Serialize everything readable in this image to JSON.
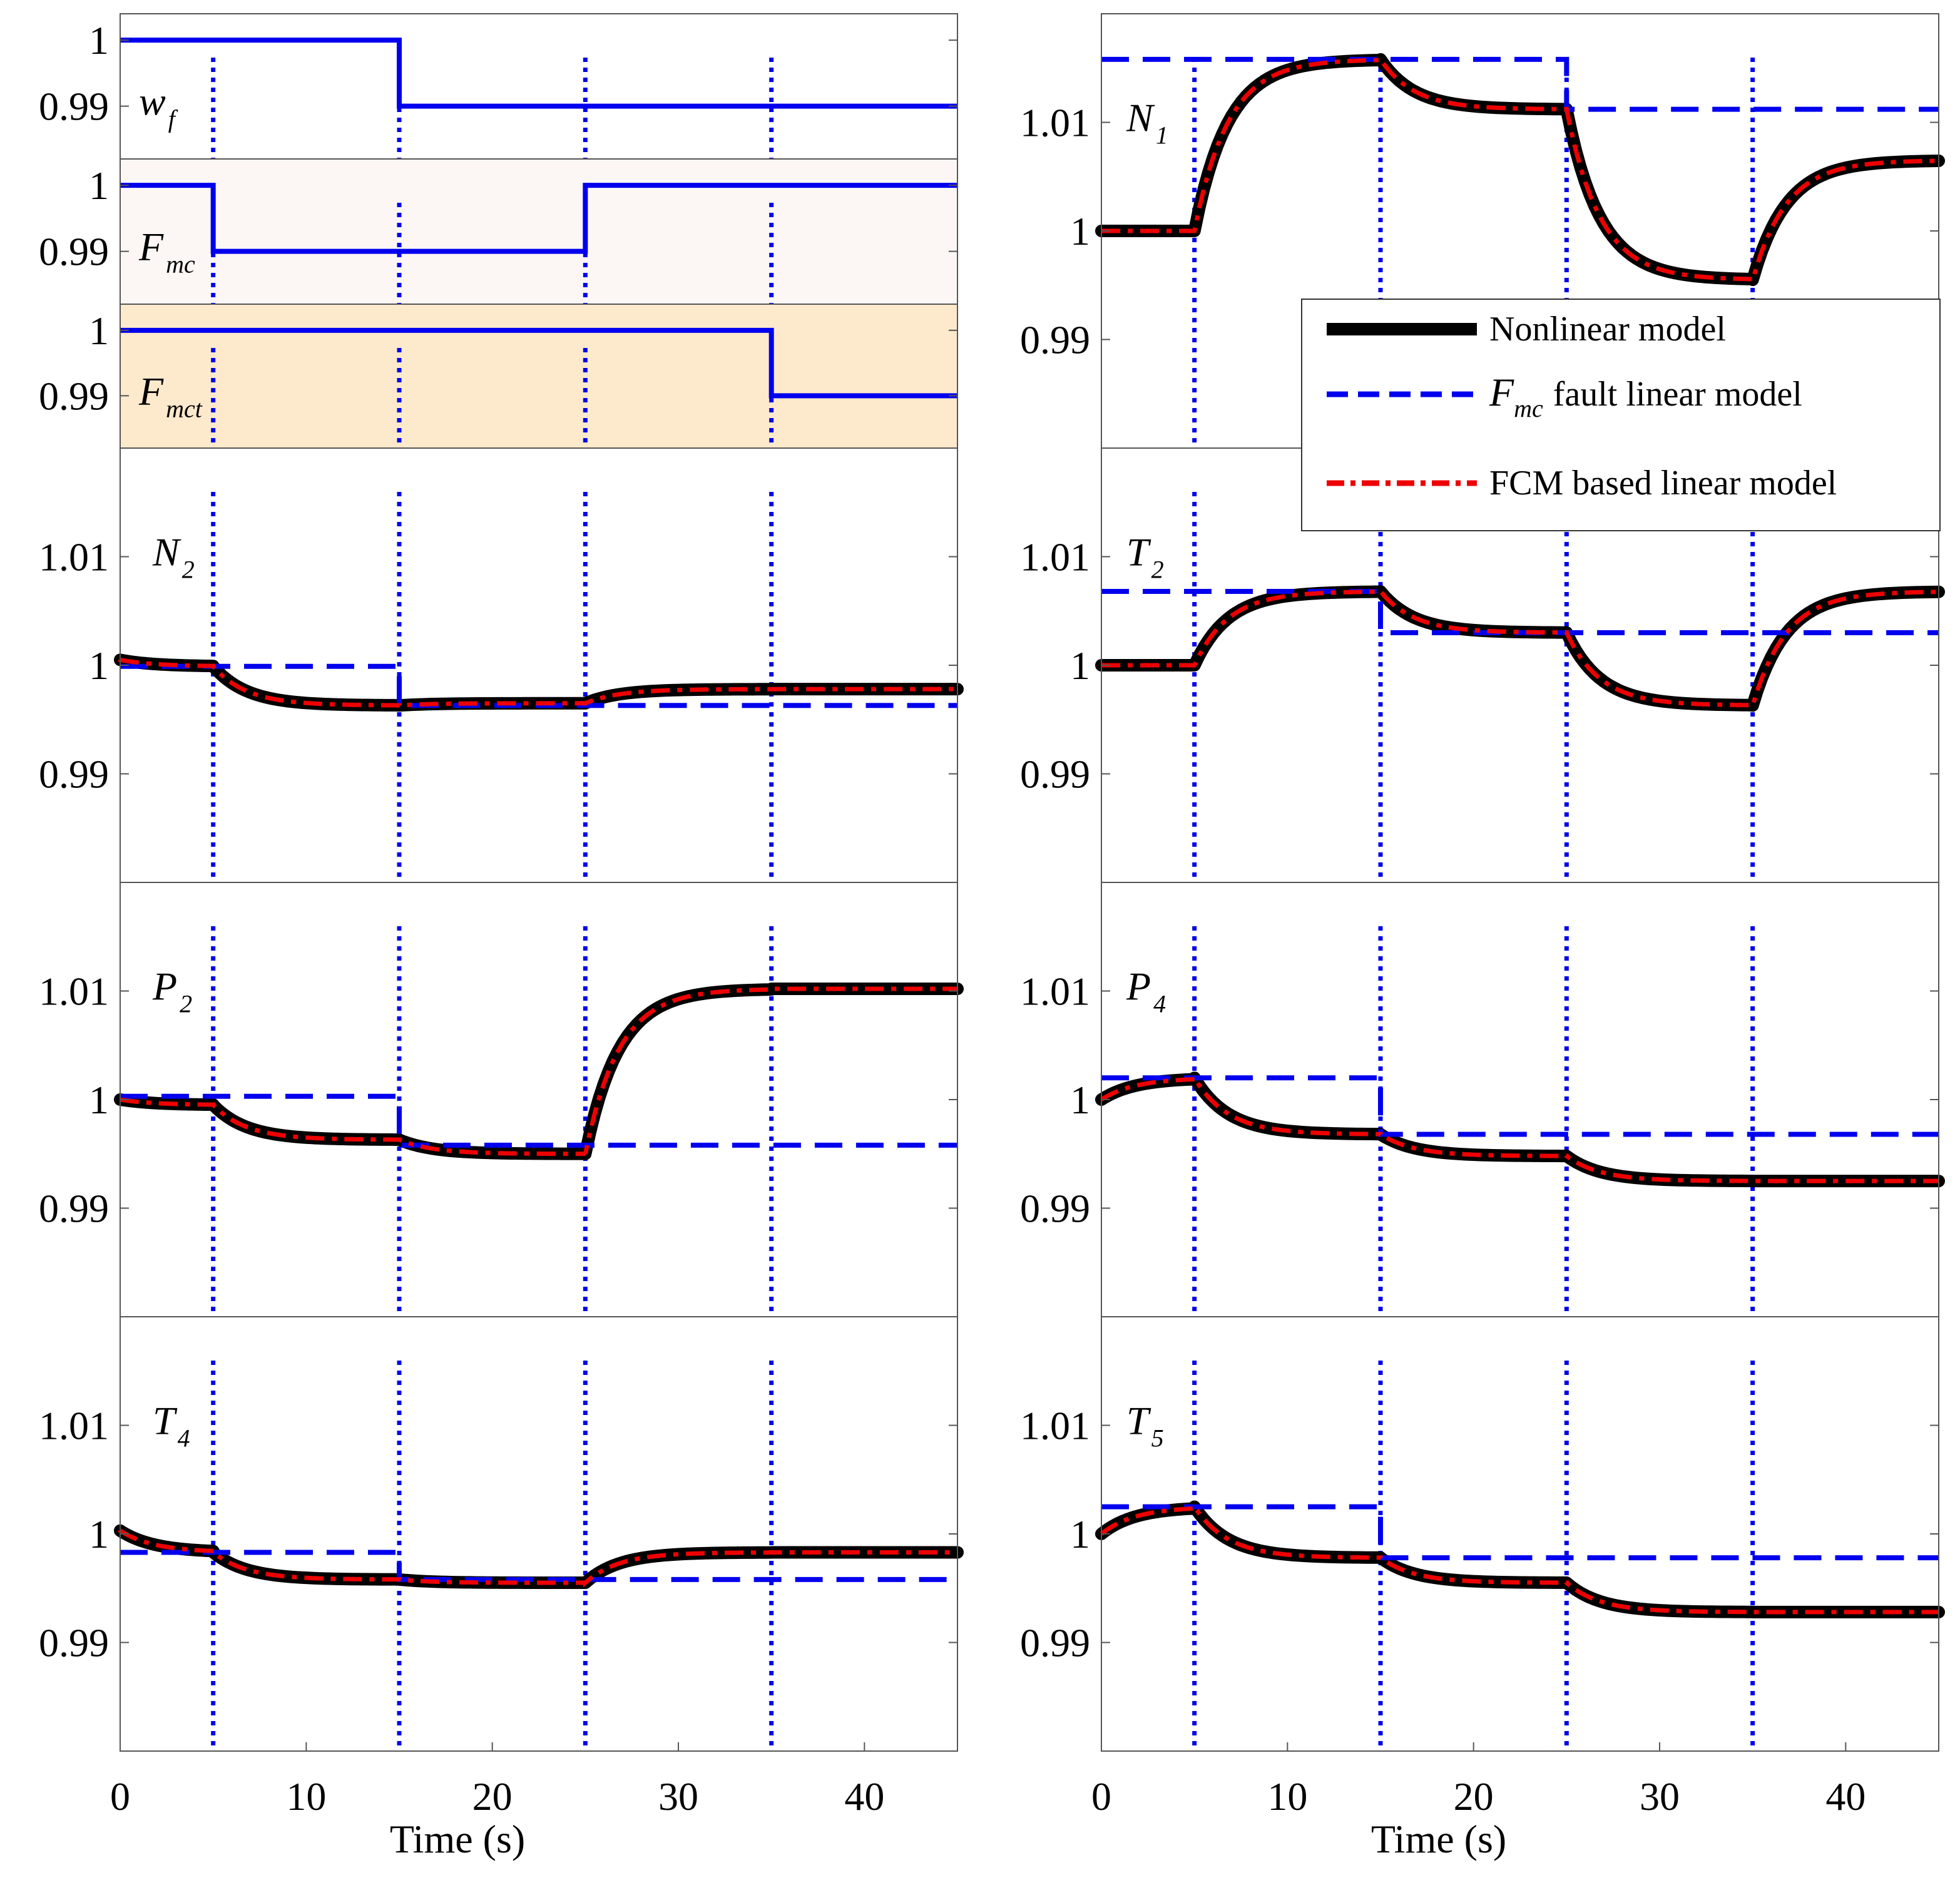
{
  "chart_data": {
    "type": "line",
    "x_label": "Time (s)",
    "x_ticks": [
      "0",
      "10",
      "20",
      "30",
      "40"
    ],
    "y_tick_labels": [
      "1.01",
      "1",
      "0.99"
    ],
    "small_y_tick_labels": [
      "1",
      "0.99"
    ],
    "legend": {
      "placement": "inside top-right of N1 panel",
      "entries": [
        {
          "key": "nonlinear",
          "label": "Nonlinear model",
          "color": "#000000",
          "style": "thick-solid"
        },
        {
          "key": "fault",
          "symbol": "F",
          "subscript": "mc",
          "label": "fault linear model",
          "color": "#0000ee",
          "style": "dashed"
        },
        {
          "key": "fcm",
          "label": "FCM based linear model",
          "color": "#ee0000",
          "style": "dash-dot"
        }
      ]
    },
    "event_times": [
      5,
      15,
      25,
      35
    ],
    "xlim": [
      0,
      45
    ],
    "input_panels": [
      {
        "id": "wf",
        "symbol": "w",
        "subscript": "f",
        "ylim": [
          0.982,
          1.004
        ],
        "background": "#ffffff",
        "steps": [
          [
            0,
            1.0
          ],
          [
            15,
            0.99
          ]
        ]
      },
      {
        "id": "fmc",
        "symbol": "F",
        "subscript": "mc",
        "ylim": [
          0.982,
          1.004
        ],
        "background": "#fcf7f5",
        "steps": [
          [
            0,
            1.0
          ],
          [
            5,
            0.99
          ],
          [
            25,
            1.0
          ]
        ]
      },
      {
        "id": "fmct",
        "symbol": "F",
        "subscript": "mct",
        "ylim": [
          0.982,
          1.004
        ],
        "background": "#fde9cc",
        "steps": [
          [
            0,
            1.0
          ],
          [
            35,
            0.99
          ]
        ]
      }
    ],
    "output_panels": [
      {
        "id": "n1",
        "symbol": "N",
        "subscript": "1",
        "ylim": [
          0.98,
          1.02
        ],
        "nonlinear": [
          [
            0,
            1.0
          ],
          [
            5,
            1.0
          ],
          [
            15,
            1.0158
          ],
          [
            25,
            1.0112
          ],
          [
            35,
            0.9955
          ],
          [
            45,
            1.0065
          ]
        ],
        "fcm": [
          [
            0,
            1.0
          ],
          [
            5,
            1.0
          ],
          [
            15,
            1.0158
          ],
          [
            25,
            1.0112
          ],
          [
            35,
            0.9955
          ],
          [
            45,
            1.0065
          ]
        ],
        "fault_linear": [
          [
            0,
            1.0158
          ],
          [
            25,
            1.0112
          ]
        ]
      },
      {
        "id": "n2",
        "symbol": "N",
        "subscript": "2",
        "ylim": [
          0.98,
          1.02
        ],
        "nonlinear": [
          [
            0,
            1.0005
          ],
          [
            5,
            0.9999
          ],
          [
            15,
            0.9963
          ],
          [
            25,
            0.9965
          ],
          [
            35,
            0.9978
          ],
          [
            45,
            0.9978
          ]
        ],
        "fcm": [
          [
            0,
            1.0005
          ],
          [
            5,
            0.9999
          ],
          [
            15,
            0.9963
          ],
          [
            25,
            0.9965
          ],
          [
            35,
            0.9978
          ],
          [
            45,
            0.9978
          ]
        ],
        "fault_linear": [
          [
            0,
            0.9999
          ],
          [
            15,
            0.9963
          ]
        ]
      },
      {
        "id": "t2",
        "symbol": "T",
        "subscript": "2",
        "ylim": [
          0.98,
          1.02
        ],
        "nonlinear": [
          [
            0,
            1.0
          ],
          [
            5,
            1.0
          ],
          [
            15,
            1.0068
          ],
          [
            25,
            1.003
          ],
          [
            35,
            0.9963
          ],
          [
            45,
            1.0068
          ]
        ],
        "fcm": [
          [
            0,
            1.0
          ],
          [
            5,
            1.0
          ],
          [
            15,
            1.0068
          ],
          [
            25,
            1.003
          ],
          [
            35,
            0.9963
          ],
          [
            45,
            1.0068
          ]
        ],
        "fault_linear": [
          [
            0,
            1.0068
          ],
          [
            15,
            1.003
          ]
        ]
      },
      {
        "id": "p2",
        "symbol": "P",
        "subscript": "2",
        "ylim": [
          0.98,
          1.02
        ],
        "nonlinear": [
          [
            0,
            1.0
          ],
          [
            5,
            0.9995
          ],
          [
            15,
            0.9963
          ],
          [
            25,
            0.995
          ],
          [
            35,
            1.0102
          ],
          [
            45,
            1.0102
          ]
        ],
        "fcm": [
          [
            0,
            1.0
          ],
          [
            5,
            0.9995
          ],
          [
            15,
            0.9963
          ],
          [
            25,
            0.995
          ],
          [
            35,
            1.0102
          ],
          [
            45,
            1.0102
          ]
        ],
        "fault_linear": [
          [
            0,
            1.0003
          ],
          [
            15,
            0.9958
          ]
        ]
      },
      {
        "id": "p4",
        "symbol": "P",
        "subscript": "4",
        "ylim": [
          0.98,
          1.02
        ],
        "nonlinear": [
          [
            0,
            1.0
          ],
          [
            5,
            1.002
          ],
          [
            15,
            0.9968
          ],
          [
            25,
            0.9948
          ],
          [
            35,
            0.9925
          ],
          [
            45,
            0.9925
          ]
        ],
        "fcm": [
          [
            0,
            1.0
          ],
          [
            5,
            1.002
          ],
          [
            15,
            0.9968
          ],
          [
            25,
            0.9948
          ],
          [
            35,
            0.9925
          ],
          [
            45,
            0.9925
          ]
        ],
        "fault_linear": [
          [
            0,
            1.002
          ],
          [
            15,
            0.9968
          ]
        ]
      },
      {
        "id": "t4",
        "symbol": "T",
        "subscript": "4",
        "ylim": [
          0.98,
          1.02
        ],
        "nonlinear": [
          [
            0,
            1.0003
          ],
          [
            5,
            0.9983
          ],
          [
            15,
            0.9958
          ],
          [
            25,
            0.9955
          ],
          [
            35,
            0.9983
          ],
          [
            45,
            0.9983
          ]
        ],
        "fcm": [
          [
            0,
            1.0003
          ],
          [
            5,
            0.9983
          ],
          [
            15,
            0.9958
          ],
          [
            25,
            0.9955
          ],
          [
            35,
            0.9983
          ],
          [
            45,
            0.9983
          ]
        ],
        "fault_linear": [
          [
            0,
            0.9983
          ],
          [
            15,
            0.9958
          ]
        ]
      },
      {
        "id": "t5",
        "symbol": "T",
        "subscript": "5",
        "ylim": [
          0.98,
          1.02
        ],
        "nonlinear": [
          [
            0,
            1.0
          ],
          [
            5,
            1.0025
          ],
          [
            15,
            0.9978
          ],
          [
            25,
            0.9955
          ],
          [
            35,
            0.9928
          ],
          [
            45,
            0.9928
          ]
        ],
        "fcm": [
          [
            0,
            1.0
          ],
          [
            5,
            1.0025
          ],
          [
            15,
            0.9978
          ],
          [
            25,
            0.9955
          ],
          [
            35,
            0.9928
          ],
          [
            45,
            0.9928
          ]
        ],
        "fault_linear": [
          [
            0,
            1.0025
          ],
          [
            15,
            0.9978
          ]
        ]
      }
    ]
  }
}
